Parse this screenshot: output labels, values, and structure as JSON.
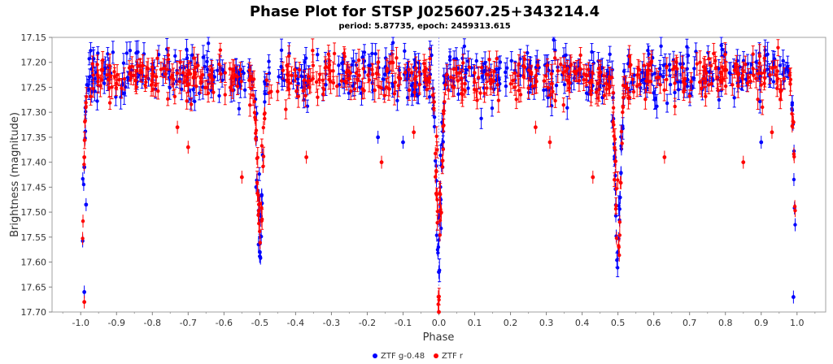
{
  "chart_data": {
    "type": "scatter",
    "title": "Phase Plot for STSP J025607.25+343214.4",
    "subtitle": "period: 5.87735, epoch: 2459313.615",
    "xlabel": "Phase",
    "ylabel": "Brightness (magnitude)",
    "xlim": [
      -1.08,
      1.08
    ],
    "ylim": [
      17.15,
      17.7
    ],
    "y_inverted": true,
    "x_ticks": [
      "-1.0",
      "-0.9",
      "-0.8",
      "-0.7",
      "-0.6",
      "-0.5",
      "-0.4",
      "-0.3",
      "-0.2",
      "-0.1",
      "0.0",
      "0.1",
      "0.2",
      "0.3",
      "0.4",
      "0.5",
      "0.6",
      "0.7",
      "0.8",
      "0.9",
      "1.0"
    ],
    "y_ticks": [
      "17.15",
      "17.20",
      "17.25",
      "17.30",
      "17.35",
      "17.40",
      "17.45",
      "17.50",
      "17.55",
      "17.60",
      "17.65",
      "17.70"
    ],
    "reference_line_x": 0.0,
    "legend_placement": "bottom-center",
    "series": [
      {
        "name": "ZTF g-0.48",
        "color": "#0000ff",
        "baseline": 17.225,
        "eclipses": [
          {
            "center": 0.0,
            "depth": 17.67
          },
          {
            "center": -0.5,
            "depth": 17.63
          }
        ],
        "sample_points": [
          {
            "x": -0.99,
            "y": 17.66
          },
          {
            "x": -0.99,
            "y": 17.41
          },
          {
            "x": -0.985,
            "y": 17.485
          },
          {
            "x": -0.5,
            "y": 17.58
          },
          {
            "x": -0.51,
            "y": 17.45
          },
          {
            "x": 0.0,
            "y": 17.62
          },
          {
            "x": 0.01,
            "y": 17.41
          },
          {
            "x": 0.5,
            "y": 17.58
          },
          {
            "x": 0.99,
            "y": 17.67
          },
          {
            "x": -0.1,
            "y": 17.36
          },
          {
            "x": -0.17,
            "y": 17.35
          },
          {
            "x": 0.9,
            "y": 17.36
          }
        ]
      },
      {
        "name": "ZTF r",
        "color": "#ff0000",
        "baseline": 17.23,
        "eclipses": [
          {
            "center": 0.0,
            "depth": 17.7
          },
          {
            "center": -0.5,
            "depth": 17.64
          }
        ],
        "sample_points": [
          {
            "x": -0.99,
            "y": 17.68
          },
          {
            "x": -0.99,
            "y": 17.39
          },
          {
            "x": -0.55,
            "y": 17.43
          },
          {
            "x": -0.7,
            "y": 17.37
          },
          {
            "x": -0.73,
            "y": 17.33
          },
          {
            "x": -0.37,
            "y": 17.39
          },
          {
            "x": -0.16,
            "y": 17.4
          },
          {
            "x": -0.07,
            "y": 17.34
          },
          {
            "x": 0.0,
            "y": 17.7
          },
          {
            "x": 0.27,
            "y": 17.33
          },
          {
            "x": 0.31,
            "y": 17.36
          },
          {
            "x": 0.43,
            "y": 17.43
          },
          {
            "x": 0.63,
            "y": 17.39
          },
          {
            "x": 0.85,
            "y": 17.4
          },
          {
            "x": 0.93,
            "y": 17.34
          },
          {
            "x": 0.99,
            "y": 17.32
          }
        ]
      }
    ]
  },
  "legend": {
    "items": [
      {
        "label": "ZTF g-0.48",
        "color": "#0000ff"
      },
      {
        "label": "ZTF r",
        "color": "#ff0000"
      }
    ]
  }
}
